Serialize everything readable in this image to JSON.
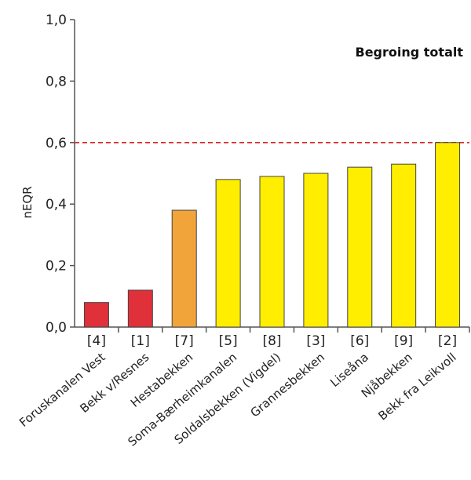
{
  "chart_data": {
    "type": "bar",
    "title": "Begroing totalt",
    "ylabel": "nEQR",
    "xlabel": "",
    "ylim": [
      0,
      1.0
    ],
    "yticks": [
      "0,0",
      "0,2",
      "0,4",
      "0,6",
      "0,8",
      "1,0"
    ],
    "ytick_values": [
      0,
      0.2,
      0.4,
      0.6,
      0.8,
      1.0
    ],
    "grid": false,
    "reference_line": {
      "value": 0.6,
      "style": "dashed",
      "color": "#d62728"
    },
    "categories": [
      {
        "code": "[4]",
        "name": "Foruskanalen Vest",
        "value": 0.08,
        "color": "#e0303a"
      },
      {
        "code": "[1]",
        "name": "Bekk v/Resnes",
        "value": 0.12,
        "color": "#e0303a"
      },
      {
        "code": "[7]",
        "name": "Hestabekken",
        "value": 0.38,
        "color": "#f0a43a"
      },
      {
        "code": "[5]",
        "name": "Soma-Bærheimkanalen",
        "value": 0.48,
        "color": "#ffee00"
      },
      {
        "code": "[8]",
        "name": "Soldalsbekken (Vigdel)",
        "value": 0.49,
        "color": "#ffee00"
      },
      {
        "code": "[3]",
        "name": "Grannesbekken",
        "value": 0.5,
        "color": "#ffee00"
      },
      {
        "code": "[6]",
        "name": "Liseåna",
        "value": 0.52,
        "color": "#ffee00"
      },
      {
        "code": "[9]",
        "name": "Njåbekken",
        "value": 0.53,
        "color": "#ffee00"
      },
      {
        "code": "[2]",
        "name": "Bekk fra Leikvoll",
        "value": 0.6,
        "color": "#ffee00"
      }
    ]
  }
}
